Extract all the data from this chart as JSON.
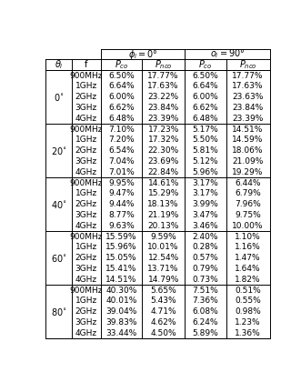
{
  "rows": [
    [
      "0",
      "900MHz",
      "6.50%",
      "17.77%",
      "6.50%",
      "17.77%"
    ],
    [
      "",
      "1GHz",
      "6.64%",
      "17.63%",
      "6.64%",
      "17.63%"
    ],
    [
      "",
      "2GHz",
      "6.00%",
      "23.22%",
      "6.00%",
      "23.63%"
    ],
    [
      "",
      "3GHz",
      "6.62%",
      "23.84%",
      "6.62%",
      "23.84%"
    ],
    [
      "",
      "4GHz",
      "6.48%",
      "23.39%",
      "6.48%",
      "23.39%"
    ],
    [
      "20",
      "900MHz",
      "7.10%",
      "17.23%",
      "5.17%",
      "14.51%"
    ],
    [
      "",
      "1GHz",
      "7.20%",
      "17.32%",
      "5.50%",
      "14.59%"
    ],
    [
      "",
      "2GHz",
      "6.54%",
      "22.30%",
      "5.81%",
      "18.06%"
    ],
    [
      "",
      "3GHz",
      "7.04%",
      "23.69%",
      "5.12%",
      "21.09%"
    ],
    [
      "",
      "4GHz",
      "7.01%",
      "22.84%",
      "5.96%",
      "19.29%"
    ],
    [
      "40",
      "900MHz",
      "9.95%",
      "14.61%",
      "3.17%",
      "6.44%"
    ],
    [
      "",
      "1GHz",
      "9.47%",
      "15.29%",
      "3.17%",
      "6.79%"
    ],
    [
      "",
      "2GHz",
      "9.44%",
      "18.13%",
      "3.99%",
      "7.96%"
    ],
    [
      "",
      "3GHz",
      "8.77%",
      "21.19%",
      "3.47%",
      "9.75%"
    ],
    [
      "",
      "4GHz",
      "9.63%",
      "20.13%",
      "3.46%",
      "10.00%"
    ],
    [
      "60",
      "900MHz",
      "15.59%",
      "9.59%",
      "2.40%",
      "1.10%"
    ],
    [
      "",
      "1GHz",
      "15.96%",
      "10.01%",
      "0.28%",
      "1.16%"
    ],
    [
      "",
      "2GHz",
      "15.05%",
      "12.54%",
      "0.57%",
      "1.47%"
    ],
    [
      "",
      "3GHz",
      "15.41%",
      "13.71%",
      "0.79%",
      "1.64%"
    ],
    [
      "",
      "4GHz",
      "14.51%",
      "14.79%",
      "0.73%",
      "1.82%"
    ],
    [
      "80",
      "900MHz",
      "40.30%",
      "5.65%",
      "7.51%",
      "0.51%"
    ],
    [
      "",
      "1GHz",
      "40.01%",
      "5.43%",
      "7.36%",
      "0.55%"
    ],
    [
      "",
      "2GHz",
      "39.04%",
      "4.71%",
      "6.08%",
      "0.98%"
    ],
    [
      "",
      "3GHz",
      "39.83%",
      "4.62%",
      "6.24%",
      "1.23%"
    ],
    [
      "",
      "4GHz",
      "33.44%",
      "4.50%",
      "5.89%",
      "1.36%"
    ]
  ],
  "bg_color": "#ffffff",
  "text_color": "#000000",
  "line_color": "#000000",
  "fs_data": 6.5,
  "fs_header": 7.0,
  "fs_theta": 7.0,
  "lw": 0.7
}
